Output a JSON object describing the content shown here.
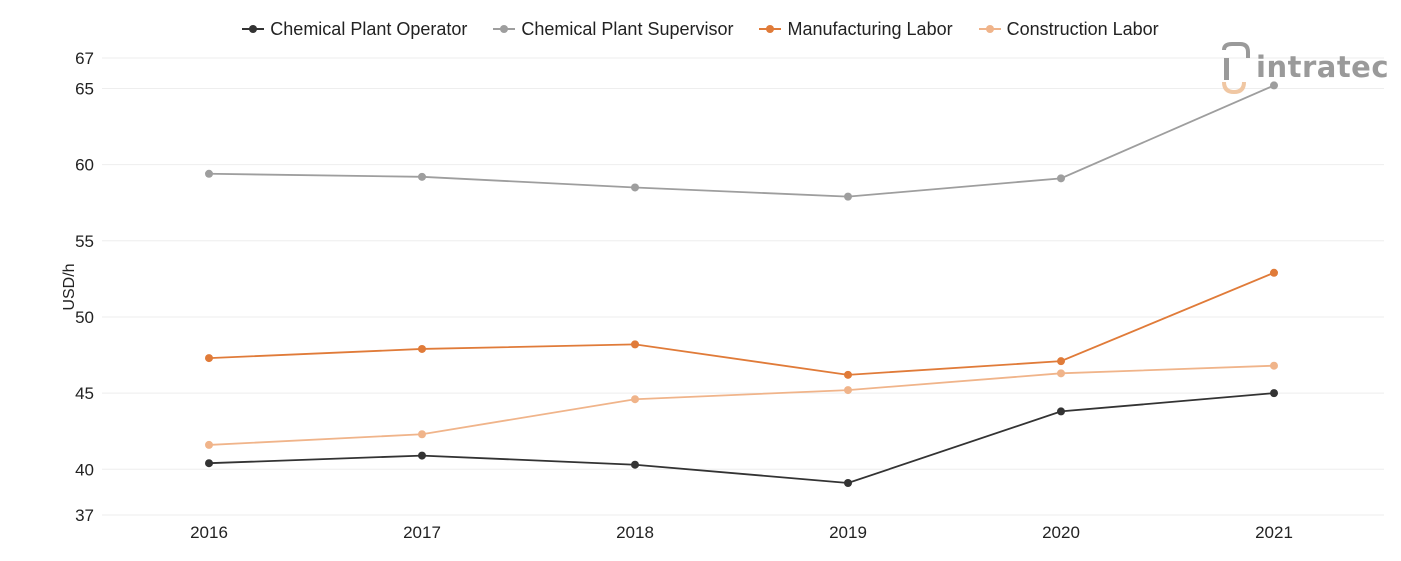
{
  "chart_data": {
    "type": "line",
    "title": "",
    "xlabel": "",
    "ylabel": "USD/h",
    "categories": [
      "2016",
      "2017",
      "2018",
      "2019",
      "2020",
      "2021"
    ],
    "ylim": [
      37,
      67
    ],
    "y_ticks": [
      37,
      40,
      45,
      50,
      55,
      60,
      65,
      67
    ],
    "grid": true,
    "legend_position": "top-center",
    "series": [
      {
        "name": "Chemical Plant Operator",
        "color": "#333333",
        "values": [
          40.4,
          40.9,
          40.3,
          39.1,
          43.8,
          45.0
        ]
      },
      {
        "name": "Chemical Plant Supervisor",
        "color": "#9e9e9e",
        "values": [
          59.4,
          59.2,
          58.5,
          57.9,
          59.1,
          65.2
        ]
      },
      {
        "name": "Manufacturing Labor",
        "color": "#e07b39",
        "values": [
          47.3,
          47.9,
          48.2,
          46.2,
          47.1,
          52.9
        ]
      },
      {
        "name": "Construction Labor",
        "color": "#f0b48a",
        "values": [
          41.6,
          42.3,
          44.6,
          45.2,
          46.3,
          46.8
        ]
      }
    ]
  },
  "logo": {
    "text": "intratec",
    "icon": "intratec-logo-mark-icon"
  }
}
